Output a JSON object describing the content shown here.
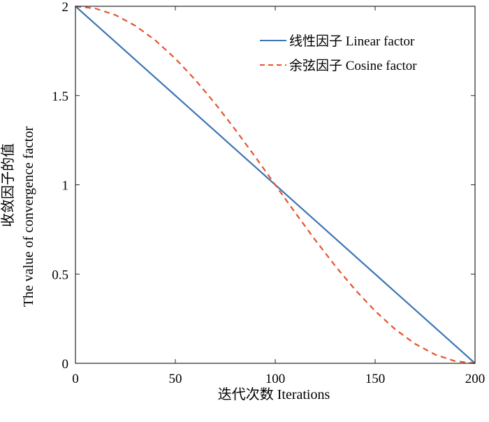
{
  "chart_data": {
    "type": "line",
    "title": "",
    "xlabel": "迭代次数 Iterations",
    "ylabel_line1": "收敛因子的值",
    "ylabel_line2": "The value of convergence factor",
    "xlim": [
      0,
      200
    ],
    "ylim": [
      0,
      2
    ],
    "xticks": [
      0,
      50,
      100,
      150,
      200
    ],
    "yticks": [
      0,
      0.5,
      1,
      1.5,
      2
    ],
    "xtick_labels": [
      "0",
      "50",
      "100",
      "150",
      "200"
    ],
    "ytick_labels": [
      "0",
      "0.5",
      "1",
      "1.5",
      "2"
    ],
    "grid": false,
    "legend_position": "top-right",
    "x": [
      0,
      10,
      20,
      30,
      40,
      50,
      60,
      70,
      80,
      90,
      100,
      110,
      120,
      130,
      140,
      150,
      160,
      170,
      180,
      190,
      200
    ],
    "series": [
      {
        "name": "线性因子 Linear factor",
        "color": "#3B75B4",
        "style": "solid",
        "values": [
          2.0,
          1.9,
          1.8,
          1.7,
          1.6,
          1.5,
          1.4,
          1.3,
          1.2,
          1.1,
          1.0,
          0.9,
          0.8,
          0.7,
          0.6,
          0.5,
          0.4,
          0.3,
          0.2,
          0.1,
          0.0
        ]
      },
      {
        "name": "余弦因子 Cosine factor",
        "color": "#E4532E",
        "style": "dashed",
        "values": [
          2.0,
          1.9877,
          1.9511,
          1.891,
          1.809,
          1.7071,
          1.5878,
          1.454,
          1.309,
          1.1564,
          1.0,
          0.8436,
          0.691,
          0.546,
          0.4122,
          0.2929,
          0.191,
          0.109,
          0.0489,
          0.0123,
          0.0
        ]
      }
    ]
  }
}
